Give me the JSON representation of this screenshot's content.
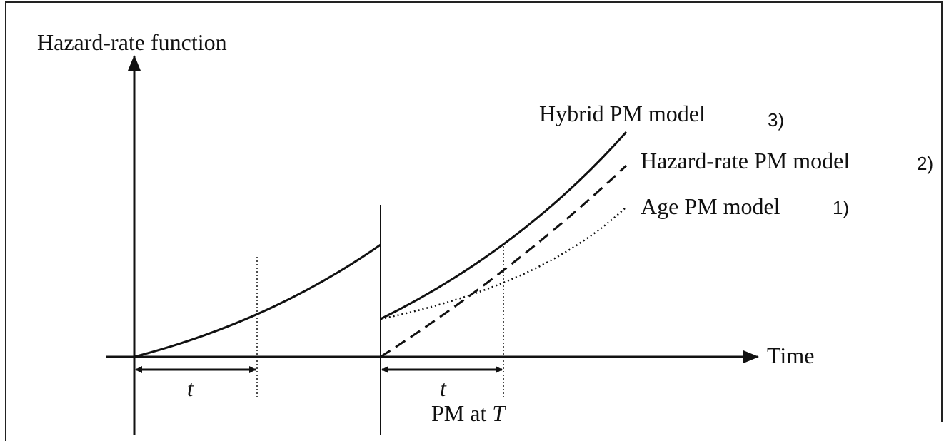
{
  "y_axis_label": "Hazard-rate function",
  "x_axis_label": "Time",
  "interval_labels": [
    "t",
    "t"
  ],
  "pm_label": {
    "text": "PM at",
    "symbol": "T"
  },
  "curves": [
    {
      "label": "Hybrid PM model",
      "number": "3)"
    },
    {
      "label": "Hazard-rate PM model",
      "number": "2)"
    },
    {
      "label": "Age PM model",
      "number": "1)"
    }
  ]
}
